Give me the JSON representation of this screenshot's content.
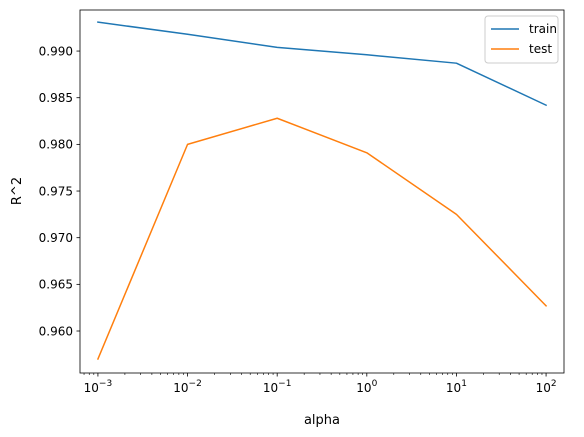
{
  "chart_data": {
    "type": "line",
    "title": "",
    "xlabel": "alpha",
    "ylabel": "R^2",
    "xscale": "log",
    "x": [
      0.001,
      0.01,
      0.1,
      1,
      10,
      100
    ],
    "xlim": [
      0.000631,
      158.5
    ],
    "ylim": [
      0.9555,
      0.9944
    ],
    "xticks": [
      {
        "value": 0.001,
        "base": "10",
        "exp": "−3"
      },
      {
        "value": 0.01,
        "base": "10",
        "exp": "−2"
      },
      {
        "value": 0.1,
        "base": "10",
        "exp": "−1"
      },
      {
        "value": 1,
        "base": "10",
        "exp": "0"
      },
      {
        "value": 10,
        "base": "10",
        "exp": "1"
      },
      {
        "value": 100,
        "base": "10",
        "exp": "2"
      }
    ],
    "yticks": [
      {
        "value": 0.96,
        "label": "0.960"
      },
      {
        "value": 0.965,
        "label": "0.965"
      },
      {
        "value": 0.97,
        "label": "0.970"
      },
      {
        "value": 0.975,
        "label": "0.975"
      },
      {
        "value": 0.98,
        "label": "0.980"
      },
      {
        "value": 0.985,
        "label": "0.985"
      },
      {
        "value": 0.99,
        "label": "0.990"
      }
    ],
    "series": [
      {
        "name": "train",
        "color": "#1f77b4",
        "values": [
          0.9931,
          0.9918,
          0.9904,
          0.9896,
          0.9887,
          0.9842
        ]
      },
      {
        "name": "test",
        "color": "#ff7f0e",
        "values": [
          0.957,
          0.98,
          0.9828,
          0.9791,
          0.9725,
          0.9627
        ]
      }
    ],
    "legend": "top-right",
    "grid": false
  }
}
